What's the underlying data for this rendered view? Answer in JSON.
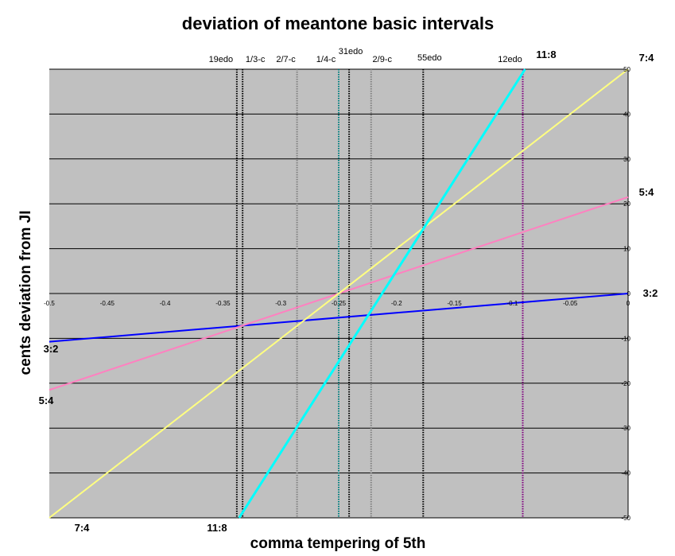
{
  "chart_data": {
    "type": "line",
    "title": "deviation of meantone basic intervals",
    "xlabel": "comma tempering of 5th",
    "ylabel": "cents deviation from JI",
    "xlim": [
      -0.5,
      0
    ],
    "ylim": [
      -50,
      50
    ],
    "x_ticks": [
      -0.5,
      -0.45,
      -0.4,
      -0.35,
      -0.3,
      -0.25,
      -0.2,
      -0.15,
      -0.1,
      -0.05,
      0
    ],
    "x_tick_labels": [
      "-0.5",
      "-0.45",
      "-0.4",
      "-0.35",
      "-0.3",
      "-0.25",
      "-0.2",
      "-0.15",
      "-0.1",
      "-0.05",
      "0"
    ],
    "y_ticks": [
      -50,
      -40,
      -30,
      -20,
      -10,
      0,
      10,
      20,
      30,
      40,
      50
    ],
    "y_tick_labels": [
      "-50",
      "-40",
      "-30",
      "-20",
      "-10",
      "0",
      "10",
      "20",
      "30",
      "40",
      "50"
    ],
    "grid": "horizontal",
    "background": "#c0c0c0",
    "series": [
      {
        "name": "3:2",
        "color": "#0000ff",
        "points": [
          [
            -0.5,
            -10.75
          ],
          [
            0,
            0
          ]
        ],
        "label_left": "3:2",
        "label_right": "3:2"
      },
      {
        "name": "5:4",
        "color": "#ff80c0",
        "points": [
          [
            -0.5,
            -21.5
          ],
          [
            0,
            21.5
          ]
        ],
        "label_left": "5:4",
        "label_right": "5:4"
      },
      {
        "name": "7:4",
        "color": "#ffff80",
        "points": [
          [
            -0.5,
            -50
          ],
          [
            0,
            50
          ]
        ],
        "label_left": "7:4",
        "label_right": "7:4"
      },
      {
        "name": "11:8",
        "color": "#00ffff",
        "points": [
          [
            -0.336,
            -50
          ],
          [
            -0.089,
            50
          ]
        ],
        "label_left": "11:8",
        "label_right": "11:8"
      }
    ],
    "vertical_markers": [
      {
        "label": "19edo",
        "x": -0.338,
        "color": "#000000"
      },
      {
        "label": "1/3-c",
        "x": -0.333,
        "color": "#000000"
      },
      {
        "label": "2/7-c",
        "x": -0.286,
        "color": "#808080"
      },
      {
        "label": "1/4-c",
        "x": -0.25,
        "color": "#008080"
      },
      {
        "label": "31edo",
        "x": -0.241,
        "color": "#000000"
      },
      {
        "label": "2/9-c",
        "x": -0.222,
        "color": "#808080"
      },
      {
        "label": "55edo",
        "x": -0.177,
        "color": "#000000"
      },
      {
        "label": "12edo",
        "x": -0.091,
        "color": "#800080"
      }
    ]
  }
}
